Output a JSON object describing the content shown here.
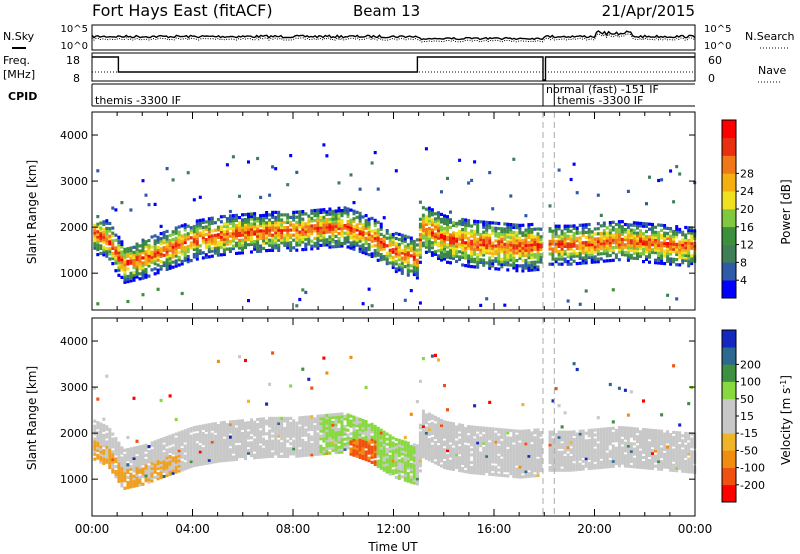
{
  "header": {
    "station": "Fort Hays East (fitACF)",
    "beam": "Beam 13",
    "date": "21/Apr/2015"
  },
  "strip": {
    "nsky_label": "N.Sky",
    "nsearch_label": "N.Search",
    "freq_label": "Freq.",
    "freq_unit": "[MHz]",
    "nave_label": "Nave",
    "cpid_label": "CPID",
    "nsky_ticks": [
      "10^5",
      "10^0"
    ],
    "nsearch_ticks": [
      "10^5",
      "10^0"
    ],
    "freq_ticks": [
      "18",
      "8"
    ],
    "nave_ticks": [
      "60",
      "0"
    ],
    "cpid_entries": [
      {
        "x": 0.0,
        "text": "themis -3300 IF",
        "row": 1
      },
      {
        "x": 17.95,
        "text": "normal (fast) -151 IF",
        "row": 0
      },
      {
        "x": 18.4,
        "text": "themis -3300 IF",
        "row": 1
      }
    ]
  },
  "chart_data": [
    {
      "type": "heatmap",
      "name": "power",
      "ylabel": "Slant Range [km]",
      "ylim": [
        200,
        4500
      ],
      "yticks": [
        "1000",
        "2000",
        "3000",
        "4000"
      ],
      "colorbar_label": "Power [dB]",
      "colorbar_ticks": [
        "4",
        "8",
        "12",
        "16",
        "20",
        "24",
        "28"
      ],
      "colorbar_colors": [
        "#0000ff",
        "#2e5aa8",
        "#3f7f57",
        "#3c8f3c",
        "#80c840",
        "#f0e020",
        "#f4b010",
        "#f07818",
        "#e83010",
        "#ff0000"
      ],
      "band_profile": [
        {
          "x": 0.0,
          "y": 1900
        },
        {
          "x": 0.6,
          "y": 1750
        },
        {
          "x": 1.2,
          "y": 1250
        },
        {
          "x": 2.0,
          "y": 1350
        },
        {
          "x": 3.0,
          "y": 1550
        },
        {
          "x": 4.0,
          "y": 1750
        },
        {
          "x": 5.0,
          "y": 1850
        },
        {
          "x": 6.0,
          "y": 1900
        },
        {
          "x": 7.0,
          "y": 1950
        },
        {
          "x": 8.0,
          "y": 1950
        },
        {
          "x": 9.0,
          "y": 2000
        },
        {
          "x": 10.0,
          "y": 2050
        },
        {
          "x": 11.0,
          "y": 1850
        },
        {
          "x": 12.0,
          "y": 1500
        },
        {
          "x": 12.9,
          "y": 1350
        },
        {
          "x": 13.1,
          "y": 2050
        },
        {
          "x": 14.0,
          "y": 1800
        },
        {
          "x": 15.0,
          "y": 1700
        },
        {
          "x": 16.0,
          "y": 1650
        },
        {
          "x": 17.0,
          "y": 1600
        },
        {
          "x": 18.0,
          "y": 1650
        },
        {
          "x": 19.0,
          "y": 1650
        },
        {
          "x": 20.0,
          "y": 1700
        },
        {
          "x": 21.0,
          "y": 1750
        },
        {
          "x": 22.0,
          "y": 1700
        },
        {
          "x": 23.0,
          "y": 1650
        },
        {
          "x": 24.0,
          "y": 1600
        }
      ]
    },
    {
      "type": "heatmap",
      "name": "velocity",
      "ylabel": "Slant Range [km]",
      "xlabel": "Time UT",
      "ylim": [
        200,
        4500
      ],
      "yticks": [
        "1000",
        "2000",
        "3000",
        "4000"
      ],
      "xticks": [
        "00:00",
        "04:00",
        "08:00",
        "12:00",
        "16:00",
        "20:00",
        "00:00"
      ],
      "xlim": [
        0,
        24
      ],
      "colorbar_label": "Velocity [m s^-1]",
      "colorbar_ticks": [
        "-200",
        "-100",
        "-50",
        "-15",
        "15",
        "50",
        "100",
        "200"
      ],
      "colorbar_colors": [
        "#ff0000",
        "#f05010",
        "#f08c10",
        "#f0b428",
        "#c8c8c8",
        "#c8c8c8",
        "#88d840",
        "#3c9040",
        "#2c6890",
        "#1428c0"
      ]
    }
  ]
}
